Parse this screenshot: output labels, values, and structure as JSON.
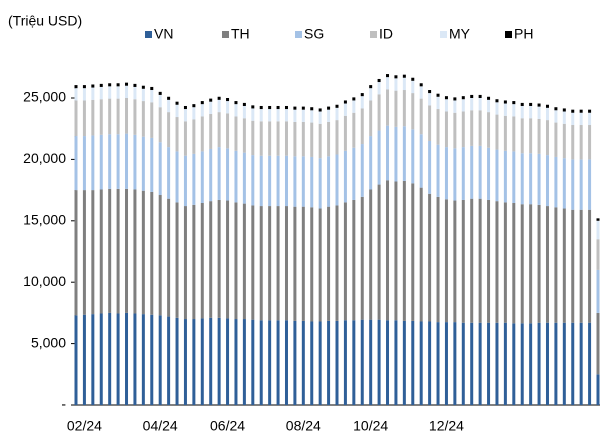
{
  "chart_data": {
    "type": "stacked_bar",
    "y_axis_label": "(Triệu USD)",
    "categories": [
      null,
      "02/24",
      null,
      null,
      null,
      null,
      null,
      null,
      null,
      null,
      "04/24",
      null,
      null,
      null,
      null,
      null,
      null,
      null,
      "06/24",
      null,
      null,
      null,
      null,
      null,
      null,
      null,
      null,
      "08/24",
      null,
      null,
      null,
      null,
      null,
      null,
      null,
      "10/24",
      null,
      null,
      null,
      null,
      null,
      null,
      null,
      null,
      "12/24",
      null,
      null,
      null,
      null,
      null,
      null,
      null,
      null,
      null,
      null,
      null,
      null,
      null,
      null,
      null,
      null,
      null,
      null
    ],
    "series": [
      {
        "name": "VN",
        "color": "#2f5f98",
        "values": [
          7300,
          7350,
          7400,
          7450,
          7500,
          7450,
          7500,
          7450,
          7400,
          7350,
          7300,
          7200,
          7100,
          7000,
          7000,
          7050,
          7100,
          7100,
          7050,
          7000,
          7000,
          6950,
          6900,
          6900,
          6900,
          6900,
          6850,
          6850,
          6800,
          6800,
          6850,
          6850,
          6900,
          6900,
          6950,
          6950,
          6950,
          6900,
          6900,
          6850,
          6850,
          6800,
          6800,
          6750,
          6750,
          6750,
          6700,
          6700,
          6700,
          6700,
          6700,
          6700,
          6650,
          6650,
          6650,
          6700,
          6700,
          6700,
          6700,
          6700,
          6700,
          6700,
          2500
        ]
      },
      {
        "name": "TH",
        "color": "#7f7f7f",
        "values": [
          10200,
          10150,
          10100,
          10100,
          10100,
          10150,
          10100,
          10100,
          10050,
          10000,
          9800,
          9600,
          9400,
          9200,
          9300,
          9400,
          9500,
          9600,
          9600,
          9500,
          9400,
          9300,
          9300,
          9300,
          9300,
          9300,
          9300,
          9300,
          9300,
          9200,
          9300,
          9400,
          9600,
          9800,
          10000,
          10600,
          11000,
          11400,
          11300,
          11400,
          11200,
          10900,
          10400,
          10200,
          10000,
          9900,
          10000,
          10100,
          10100,
          10000,
          9900,
          9800,
          9800,
          9700,
          9700,
          9600,
          9500,
          9400,
          9300,
          9200,
          9200,
          9200,
          5000
        ]
      },
      {
        "name": "SG",
        "color": "#a4c2e6",
        "values": [
          4400,
          4400,
          4450,
          4450,
          4450,
          4450,
          4500,
          4450,
          4400,
          4400,
          4300,
          4200,
          4150,
          4100,
          4150,
          4200,
          4250,
          4300,
          4250,
          4200,
          4150,
          4100,
          4100,
          4100,
          4100,
          4100,
          4100,
          4100,
          4100,
          4100,
          4100,
          4150,
          4200,
          4250,
          4300,
          4350,
          4400,
          4450,
          4450,
          4450,
          4400,
          4350,
          4300,
          4250,
          4250,
          4250,
          4300,
          4300,
          4300,
          4250,
          4200,
          4200,
          4200,
          4150,
          4150,
          4150,
          4150,
          4100,
          4100,
          4100,
          4100,
          4100,
          3500
        ]
      },
      {
        "name": "ID",
        "color": "#bfbfbf",
        "values": [
          2900,
          2900,
          2900,
          2900,
          2900,
          2900,
          2900,
          2900,
          2900,
          2900,
          2850,
          2850,
          2800,
          2800,
          2800,
          2850,
          2850,
          2850,
          2850,
          2800,
          2800,
          2800,
          2800,
          2800,
          2800,
          2800,
          2800,
          2800,
          2800,
          2800,
          2800,
          2800,
          2850,
          2850,
          2900,
          2900,
          2950,
          2950,
          2950,
          2950,
          2950,
          2900,
          2900,
          2900,
          2900,
          2900,
          2900,
          2900,
          2900,
          2900,
          2850,
          2850,
          2850,
          2850,
          2850,
          2850,
          2850,
          2800,
          2800,
          2800,
          2800,
          2800,
          2500
        ]
      },
      {
        "name": "MY",
        "color": "#dbe8f6",
        "values": [
          1000,
          1000,
          1000,
          1000,
          1000,
          1000,
          1000,
          1000,
          1000,
          1000,
          1000,
          1000,
          1000,
          1000,
          1000,
          1000,
          1000,
          1000,
          1000,
          1000,
          1000,
          1000,
          1000,
          1000,
          1000,
          1000,
          1000,
          1000,
          1000,
          1000,
          1000,
          1000,
          1000,
          1000,
          1000,
          1000,
          1000,
          1000,
          1000,
          1000,
          1000,
          1000,
          1000,
          1000,
          1000,
          1000,
          1000,
          1000,
          1000,
          1000,
          1000,
          1000,
          1000,
          1000,
          1000,
          1000,
          1000,
          1000,
          1000,
          1000,
          1000,
          1000,
          1500
        ]
      },
      {
        "name": "PH",
        "color": "#000000",
        "values": [
          250,
          250,
          250,
          250,
          250,
          250,
          250,
          250,
          250,
          250,
          250,
          250,
          250,
          250,
          250,
          250,
          250,
          250,
          250,
          250,
          250,
          250,
          250,
          250,
          250,
          250,
          250,
          250,
          250,
          250,
          250,
          250,
          250,
          250,
          250,
          250,
          250,
          250,
          250,
          250,
          250,
          250,
          250,
          250,
          250,
          250,
          250,
          250,
          250,
          250,
          250,
          250,
          250,
          250,
          250,
          250,
          250,
          250,
          250,
          250,
          250,
          250,
          200
        ]
      }
    ],
    "ylim": [
      0,
      30000
    ],
    "yticks": [
      {
        "value": 0,
        "label": "-"
      },
      {
        "value": 5000,
        "label": "5,000"
      },
      {
        "value": 10000,
        "label": "10,000"
      },
      {
        "value": 15000,
        "label": "15,000"
      },
      {
        "value": 20000,
        "label": "20,000"
      },
      {
        "value": 25000,
        "label": "25,000"
      }
    ],
    "legend": "top"
  }
}
